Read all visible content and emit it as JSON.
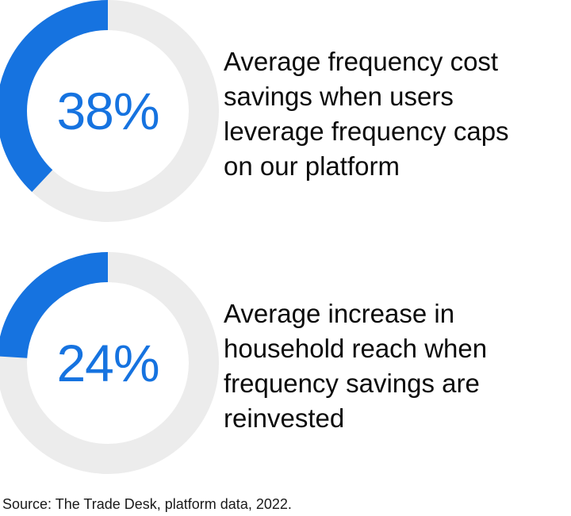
{
  "colors": {
    "accent": "#1673e0",
    "track": "#ececec",
    "text": "#0b0b0b"
  },
  "chart_data": [
    {
      "type": "pie",
      "style": "donut",
      "value": 38,
      "value_label": "38%",
      "unit": "%",
      "description": "Average frequency cost savings when users leverage frequency caps on our platform",
      "description_lines": [
        "Average frequency cost",
        "savings when users",
        "leverage frequency caps",
        "on our platform"
      ]
    },
    {
      "type": "pie",
      "style": "donut",
      "value": 24,
      "value_label": "24%",
      "unit": "%",
      "description": "Average increase in household reach when frequency savings are reinvested",
      "description_lines": [
        "Average increase in",
        "household reach when",
        "frequency savings are",
        "reinvested"
      ]
    }
  ],
  "source": "Source: The Trade Desk, platform data, 2022."
}
